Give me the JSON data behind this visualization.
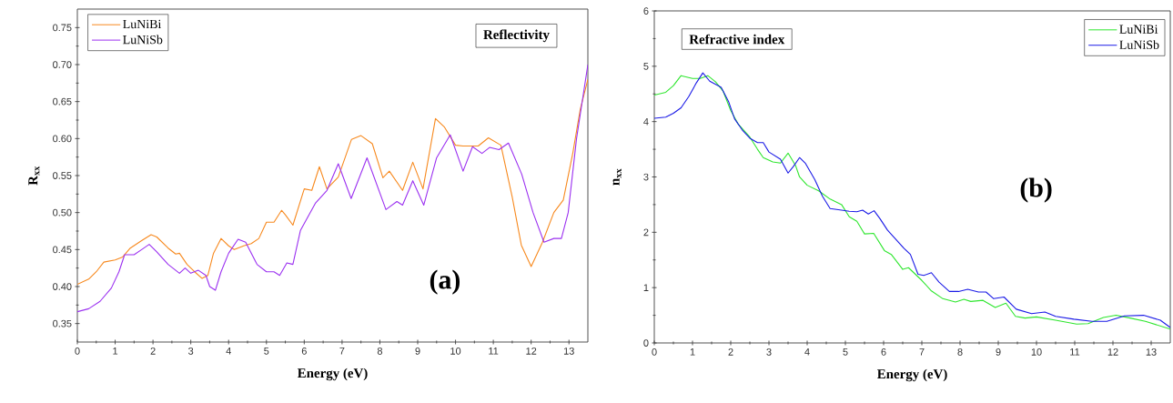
{
  "chart_data": [
    {
      "type": "line",
      "xlabel": "Energy (eV)",
      "ylabel": "R$_{xx}$",
      "annotations": [
        "Reflectivity",
        "(a)"
      ],
      "legend": "top left",
      "xlim": [
        0,
        13.5
      ],
      "xticks": [
        0,
        1,
        2,
        3,
        4,
        5,
        6,
        7,
        8,
        9,
        10,
        11,
        12,
        13
      ],
      "ylim": [
        0.325,
        0.775
      ],
      "yticks": [
        {
          "value": 0.35,
          "label": "0.35"
        },
        {
          "value": 0.4,
          "label": "0.40"
        },
        {
          "value": 0.45,
          "label": "0.45"
        },
        {
          "value": 0.5,
          "label": "0.50"
        },
        {
          "value": 0.55,
          "label": "0.55"
        },
        {
          "value": 0.6,
          "label": "0.60"
        },
        {
          "value": 0.65,
          "label": "0.65"
        },
        {
          "value": 0.7,
          "label": "0.70"
        },
        {
          "value": 0.75,
          "label": "0.75"
        }
      ],
      "series": [
        {
          "name": "LuNiBi",
          "color": "#f7891e",
          "x": [
            0,
            0.3,
            0.5,
            0.7,
            1.0,
            1.2,
            1.4,
            1.7,
            1.95,
            2.1,
            2.4,
            2.6,
            2.7,
            2.9,
            3.1,
            3.3,
            3.45,
            3.6,
            3.8,
            4.0,
            4.15,
            4.4,
            4.6,
            4.8,
            5.0,
            5.2,
            5.4,
            5.5,
            5.7,
            6.0,
            6.2,
            6.4,
            6.6,
            6.9,
            7.25,
            7.5,
            7.8,
            8.08,
            8.25,
            8.6,
            8.87,
            9.14,
            9.47,
            9.7,
            10.0,
            10.2,
            10.6,
            10.87,
            11.2,
            11.5,
            11.74,
            12.0,
            12.3,
            12.6,
            12.85,
            13.1,
            13.3,
            13.5
          ],
          "values": [
            0.403,
            0.41,
            0.42,
            0.433,
            0.436,
            0.44,
            0.452,
            0.462,
            0.47,
            0.467,
            0.452,
            0.444,
            0.445,
            0.43,
            0.42,
            0.411,
            0.415,
            0.445,
            0.465,
            0.455,
            0.45,
            0.455,
            0.458,
            0.465,
            0.487,
            0.487,
            0.503,
            0.497,
            0.483,
            0.532,
            0.53,
            0.562,
            0.532,
            0.548,
            0.599,
            0.604,
            0.593,
            0.547,
            0.556,
            0.53,
            0.568,
            0.532,
            0.627,
            0.616,
            0.591,
            0.59,
            0.59,
            0.601,
            0.591,
            0.521,
            0.456,
            0.427,
            0.46,
            0.5,
            0.517,
            0.58,
            0.64,
            0.68
          ]
        },
        {
          "name": "LuNiSb",
          "color": "#9b30f0",
          "x": [
            0,
            0.3,
            0.6,
            0.9,
            1.1,
            1.25,
            1.5,
            1.7,
            1.9,
            2.1,
            2.4,
            2.7,
            2.85,
            3.0,
            3.2,
            3.4,
            3.5,
            3.65,
            3.8,
            4.0,
            4.25,
            4.45,
            4.6,
            4.75,
            5.0,
            5.2,
            5.35,
            5.54,
            5.7,
            5.9,
            6.3,
            6.6,
            6.9,
            7.24,
            7.66,
            8.16,
            8.45,
            8.6,
            8.87,
            9.16,
            9.5,
            9.86,
            10.2,
            10.45,
            10.7,
            10.9,
            11.15,
            11.4,
            11.75,
            12.05,
            12.34,
            12.6,
            12.8,
            12.98,
            13.2,
            13.5
          ],
          "values": [
            0.366,
            0.37,
            0.38,
            0.398,
            0.42,
            0.443,
            0.443,
            0.45,
            0.457,
            0.447,
            0.43,
            0.418,
            0.425,
            0.418,
            0.422,
            0.415,
            0.4,
            0.395,
            0.42,
            0.445,
            0.464,
            0.46,
            0.445,
            0.43,
            0.42,
            0.42,
            0.415,
            0.432,
            0.43,
            0.476,
            0.513,
            0.53,
            0.566,
            0.519,
            0.574,
            0.504,
            0.515,
            0.51,
            0.543,
            0.51,
            0.574,
            0.605,
            0.556,
            0.589,
            0.58,
            0.588,
            0.585,
            0.594,
            0.552,
            0.5,
            0.46,
            0.465,
            0.465,
            0.5,
            0.6,
            0.7
          ]
        }
      ]
    },
    {
      "type": "line",
      "xlabel": "Energy (eV)",
      "ylabel": "n$_{xx}$",
      "annotations": [
        "Refractive index",
        "(b)"
      ],
      "legend": "top right",
      "xlim": [
        0,
        13.5
      ],
      "xticks": [
        0,
        1,
        2,
        3,
        4,
        5,
        6,
        7,
        8,
        9,
        10,
        11,
        12,
        13
      ],
      "ylim": [
        0,
        6
      ],
      "yticks": [
        0,
        1,
        2,
        3,
        4,
        5,
        6
      ],
      "series": [
        {
          "name": "LuNiBi",
          "color": "#2ee62e",
          "x": [
            0,
            0.3,
            0.5,
            0.7,
            1.0,
            1.2,
            1.4,
            1.6,
            1.8,
            2.0,
            2.2,
            2.5,
            2.7,
            2.85,
            3.1,
            3.3,
            3.5,
            3.7,
            3.8,
            4.0,
            4.3,
            4.6,
            4.9,
            5.1,
            5.3,
            5.5,
            5.74,
            6.02,
            6.2,
            6.5,
            6.65,
            7.0,
            7.25,
            7.55,
            7.88,
            8.1,
            8.28,
            8.6,
            8.92,
            9.2,
            9.45,
            9.7,
            10.0,
            10.5,
            11.05,
            11.35,
            11.75,
            12.08,
            12.45,
            12.85,
            13.5
          ],
          "values": [
            4.48,
            4.53,
            4.65,
            4.83,
            4.78,
            4.78,
            4.83,
            4.72,
            4.55,
            4.2,
            3.95,
            3.72,
            3.5,
            3.35,
            3.27,
            3.25,
            3.43,
            3.2,
            3.0,
            2.85,
            2.75,
            2.6,
            2.5,
            2.28,
            2.2,
            1.97,
            1.98,
            1.67,
            1.6,
            1.33,
            1.36,
            1.13,
            0.94,
            0.8,
            0.74,
            0.79,
            0.75,
            0.77,
            0.64,
            0.72,
            0.48,
            0.45,
            0.47,
            0.41,
            0.34,
            0.35,
            0.46,
            0.5,
            0.45,
            0.39,
            0.25
          ]
        },
        {
          "name": "LuNiSb",
          "color": "#1a1ae6",
          "x": [
            0,
            0.3,
            0.5,
            0.7,
            0.9,
            1.1,
            1.27,
            1.45,
            1.75,
            1.95,
            2.1,
            2.3,
            2.5,
            2.7,
            2.85,
            3.0,
            3.3,
            3.5,
            3.65,
            3.8,
            3.95,
            4.2,
            4.4,
            4.6,
            4.9,
            5.1,
            5.3,
            5.45,
            5.6,
            5.75,
            5.9,
            6.1,
            6.53,
            6.7,
            6.9,
            7.05,
            7.25,
            7.45,
            7.72,
            7.96,
            8.2,
            8.48,
            8.68,
            8.88,
            9.15,
            9.47,
            9.87,
            10.22,
            10.5,
            10.98,
            11.45,
            11.84,
            12.3,
            12.8,
            13.24,
            13.5
          ],
          "values": [
            4.06,
            4.08,
            4.15,
            4.25,
            4.45,
            4.7,
            4.88,
            4.73,
            4.62,
            4.35,
            4.05,
            3.85,
            3.7,
            3.62,
            3.62,
            3.45,
            3.32,
            3.07,
            3.2,
            3.35,
            3.25,
            2.95,
            2.65,
            2.43,
            2.4,
            2.38,
            2.37,
            2.4,
            2.33,
            2.39,
            2.25,
            2.04,
            1.71,
            1.6,
            1.24,
            1.22,
            1.27,
            1.1,
            0.93,
            0.93,
            0.97,
            0.92,
            0.92,
            0.8,
            0.83,
            0.61,
            0.53,
            0.56,
            0.48,
            0.43,
            0.39,
            0.39,
            0.49,
            0.5,
            0.41,
            0.28
          ]
        }
      ]
    }
  ]
}
